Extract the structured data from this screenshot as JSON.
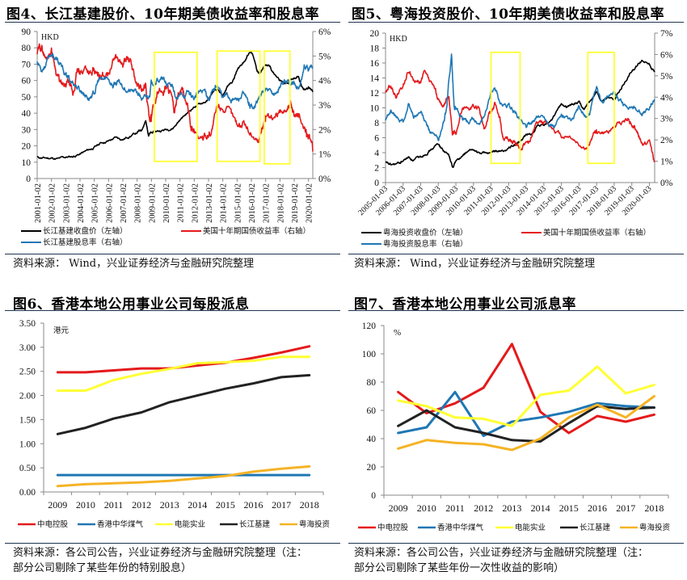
{
  "chart_data": [
    {
      "id": "fig4",
      "type": "line",
      "title": "图4、长江基建股价、10年期美债收益率和股息率",
      "left_unit": "HKD",
      "ylim_left": [
        0,
        90
      ],
      "yticks_left": [
        "0",
        "10",
        "20",
        "30",
        "40",
        "50",
        "60",
        "70",
        "80",
        "90"
      ],
      "ylim_right": [
        0,
        6
      ],
      "yticks_right": [
        "0%",
        "1%",
        "2%",
        "3%",
        "4%",
        "5%",
        "6%"
      ],
      "x_range": [
        2001.0,
        2020.3
      ],
      "xticks": [
        "2001-01-02",
        "2002-01-02",
        "2003-01-02",
        "2004-01-02",
        "2005-01-02",
        "2006-01-02",
        "2007-01-02",
        "2008-01-02",
        "2009-01-02",
        "2010-01-02",
        "2011-01-02",
        "2012-01-02",
        "2013-01-02",
        "2014-01-02",
        "2015-01-02",
        "2016-01-02",
        "2017-01-02",
        "2018-01-02",
        "2019-01-02",
        "2020-01-02"
      ],
      "series": [
        {
          "name": "长江基建收盘价（左轴）",
          "axis": "left",
          "color": "#000000",
          "x": [
            2001.0,
            2001.5,
            2002.0,
            2002.5,
            2003.0,
            2003.5,
            2004.0,
            2004.5,
            2005.0,
            2005.5,
            2006.0,
            2006.5,
            2007.0,
            2007.5,
            2008.0,
            2008.3,
            2008.6,
            2008.8,
            2009.0,
            2009.5,
            2010.0,
            2010.5,
            2011.0,
            2011.5,
            2012.0,
            2012.5,
            2013.0,
            2013.3,
            2013.6,
            2014.0,
            2014.3,
            2014.7,
            2015.0,
            2015.3,
            2015.6,
            2015.9,
            2016.1,
            2016.4,
            2016.6,
            2017.0,
            2017.3,
            2017.6,
            2018.0,
            2018.3,
            2018.6,
            2019.0,
            2019.3,
            2019.5,
            2019.8,
            2020.0,
            2020.3
          ],
          "y": [
            13,
            12.5,
            12.5,
            12,
            13,
            13.5,
            15,
            17,
            19,
            22,
            23,
            25,
            24,
            26,
            28,
            30,
            35,
            27,
            28,
            29,
            30,
            31,
            36,
            40,
            44,
            46,
            48,
            53,
            54,
            50,
            56,
            60,
            66,
            70,
            73,
            78,
            75,
            66,
            64,
            70,
            68,
            64,
            60,
            58,
            59,
            62,
            63,
            57,
            54,
            56,
            53
          ]
        },
        {
          "name": "美国十年期国债收益率（右轴）",
          "axis": "right",
          "color": "#e41a1c",
          "x": [
            2001.0,
            2001.3,
            2001.6,
            2002.0,
            2002.3,
            2002.6,
            2002.9,
            2003.2,
            2003.5,
            2003.8,
            2004.0,
            2004.4,
            2004.8,
            2005.0,
            2005.3,
            2005.6,
            2006.0,
            2006.5,
            2007.0,
            2007.3,
            2007.6,
            2008.0,
            2008.3,
            2008.6,
            2008.9,
            2009.0,
            2009.4,
            2009.8,
            2010.0,
            2010.3,
            2010.6,
            2010.9,
            2011.2,
            2011.5,
            2011.8,
            2012.0,
            2012.5,
            2012.9,
            2013.2,
            2013.6,
            2014.0,
            2014.5,
            2015.0,
            2015.5,
            2016.0,
            2016.5,
            2016.9,
            2017.0,
            2017.5,
            2018.0,
            2018.5,
            2018.8,
            2019.0,
            2019.4,
            2019.8,
            2020.0,
            2020.3
          ],
          "y": [
            5.1,
            5.4,
            4.9,
            5.3,
            4.5,
            3.9,
            3.6,
            3.9,
            3.3,
            4.4,
            4.2,
            4.6,
            4.2,
            4.3,
            4.1,
            4.3,
            4.4,
            5.0,
            4.6,
            4.9,
            4.6,
            3.8,
            3.6,
            3.9,
            2.2,
            2.4,
            3.6,
            3.5,
            3.8,
            3.6,
            2.6,
            3.4,
            3.5,
            3.0,
            2.0,
            1.9,
            1.6,
            1.8,
            2.0,
            2.8,
            3.0,
            2.6,
            2.2,
            2.3,
            1.9,
            1.5,
            2.4,
            2.5,
            2.3,
            2.7,
            2.9,
            3.1,
            2.7,
            2.4,
            1.8,
            1.9,
            1.1
          ]
        },
        {
          "name": "长江基建股息率（右轴）",
          "axis": "right",
          "color": "#1f77b4",
          "x": [
            2001.0,
            2001.3,
            2001.6,
            2002.0,
            2002.3,
            2002.6,
            2003.0,
            2003.3,
            2003.6,
            2004.0,
            2004.3,
            2004.6,
            2005.0,
            2005.3,
            2005.6,
            2006.0,
            2006.3,
            2006.6,
            2007.0,
            2007.5,
            2008.0,
            2008.4,
            2008.8,
            2009.0,
            2009.4,
            2009.8,
            2010.0,
            2010.4,
            2010.8,
            2011.2,
            2011.6,
            2012.0,
            2012.4,
            2012.8,
            2013.0,
            2013.3,
            2013.6,
            2014.0,
            2014.3,
            2014.6,
            2015.0,
            2015.4,
            2015.8,
            2016.0,
            2016.4,
            2016.7,
            2017.0,
            2017.4,
            2017.8,
            2018.0,
            2018.4,
            2018.8,
            2019.0,
            2019.4,
            2019.7,
            2020.0,
            2020.3
          ],
          "y": [
            4.8,
            4.5,
            4.7,
            5.1,
            4.9,
            4.6,
            4.2,
            4.0,
            3.9,
            3.6,
            3.5,
            3.3,
            3.5,
            4.0,
            4.0,
            4.1,
            3.8,
            3.9,
            3.8,
            3.6,
            3.5,
            3.2,
            3.3,
            3.9,
            4.1,
            4.0,
            3.9,
            3.7,
            3.2,
            3.4,
            3.5,
            3.3,
            3.5,
            3.6,
            3.3,
            3.5,
            3.9,
            3.3,
            3.4,
            3.3,
            3.2,
            3.4,
            3.0,
            2.9,
            3.2,
            3.4,
            3.6,
            3.4,
            3.5,
            3.8,
            4.0,
            3.9,
            3.9,
            3.8,
            4.6,
            4.4,
            4.5
          ]
        }
      ],
      "highlight_boxes": [
        {
          "x0": 2009.2,
          "x1": 2012.2,
          "y0": 0.7,
          "y1": 5.15
        },
        {
          "x0": 2013.6,
          "x1": 2016.6,
          "y0": 0.7,
          "y1": 5.2
        },
        {
          "x0": 2016.9,
          "x1": 2018.7,
          "y0": 0.6,
          "y1": 5.2
        }
      ]
    },
    {
      "id": "fig5",
      "type": "line",
      "title": "图5、粤海投资股价、10年期美债收益率和股息率",
      "left_unit": "HKD",
      "ylim_left": [
        0,
        20
      ],
      "yticks_left": [
        "0",
        "2",
        "4",
        "6",
        "8",
        "10",
        "12",
        "14",
        "16",
        "18",
        "20"
      ],
      "ylim_right": [
        0,
        7
      ],
      "yticks_right": [
        "0%",
        "1%",
        "2%",
        "3%",
        "4%",
        "5%",
        "6%",
        "7%"
      ],
      "x_range": [
        2005.0,
        2020.3
      ],
      "xticks": [
        "2005-01-03",
        "2006-01-03",
        "2007-01-03",
        "2008-01-03",
        "2009-01-03",
        "2010-01-03",
        "2011-01-03",
        "2012-01-03",
        "2013-01-03",
        "2014-01-03",
        "2015-01-03",
        "2016-01-03",
        "2017-01-03",
        "2018-01-03",
        "2019-01-03",
        "2020-01-03"
      ],
      "series": [
        {
          "name": "粤海投资收盘价（左轴）",
          "axis": "left",
          "color": "#000000",
          "x": [
            2005.0,
            2005.3,
            2005.7,
            2006.0,
            2006.3,
            2006.6,
            2007.0,
            2007.3,
            2007.7,
            2008.0,
            2008.3,
            2008.6,
            2008.8,
            2009.0,
            2009.3,
            2009.6,
            2010.0,
            2010.3,
            2010.6,
            2011.0,
            2011.3,
            2011.6,
            2012.0,
            2012.3,
            2012.6,
            2013.0,
            2013.3,
            2013.6,
            2014.0,
            2014.3,
            2014.6,
            2015.0,
            2015.3,
            2015.6,
            2016.0,
            2016.3,
            2016.6,
            2016.9,
            2017.0,
            2017.3,
            2017.6,
            2018.0,
            2018.3,
            2018.6,
            2019.0,
            2019.3,
            2019.6,
            2020.0,
            2020.3
          ],
          "y": [
            2.6,
            2.3,
            2.5,
            2.9,
            3.4,
            3.0,
            3.4,
            4.0,
            4.6,
            5.2,
            4.3,
            3.6,
            2.0,
            3.0,
            3.3,
            4.0,
            4.4,
            3.8,
            4.0,
            4.0,
            4.1,
            4.1,
            4.6,
            5.0,
            5.4,
            6.2,
            6.5,
            7.3,
            7.6,
            8.0,
            9.0,
            10.5,
            10.0,
            10.5,
            10.7,
            9.8,
            10.5,
            11.5,
            12.0,
            11.0,
            11.5,
            11.0,
            12.5,
            13.5,
            15.0,
            15.5,
            16.5,
            16.0,
            14.8
          ]
        },
        {
          "name": "美国十年期国债收益率（右轴）",
          "axis": "right",
          "color": "#e41a1c",
          "x": [
            2005.0,
            2005.3,
            2005.6,
            2006.0,
            2006.3,
            2006.6,
            2007.0,
            2007.2,
            2007.5,
            2007.8,
            2008.0,
            2008.3,
            2008.6,
            2008.8,
            2009.0,
            2009.4,
            2009.8,
            2010.0,
            2010.3,
            2010.6,
            2010.9,
            2011.0,
            2011.2,
            2011.5,
            2011.7,
            2012.0,
            2012.3,
            2012.6,
            2012.9,
            2013.2,
            2013.5,
            2013.8,
            2014.0,
            2014.5,
            2015.0,
            2015.5,
            2016.0,
            2016.5,
            2016.9,
            2017.0,
            2017.5,
            2018.0,
            2018.5,
            2018.8,
            2019.0,
            2019.3,
            2019.6,
            2020.0,
            2020.3
          ],
          "y": [
            4.2,
            4.5,
            4.0,
            4.5,
            5.2,
            4.7,
            4.7,
            5.1,
            4.7,
            4.3,
            3.9,
            3.6,
            4.0,
            2.3,
            2.4,
            3.6,
            3.4,
            3.7,
            3.5,
            2.6,
            3.3,
            3.4,
            3.7,
            3.0,
            2.0,
            2.0,
            1.9,
            1.6,
            1.8,
            2.0,
            2.7,
            2.7,
            2.8,
            2.6,
            2.2,
            2.2,
            1.8,
            1.6,
            2.4,
            2.4,
            2.3,
            2.6,
            2.9,
            3.1,
            2.7,
            2.4,
            1.8,
            1.9,
            1.0
          ]
        },
        {
          "name": "粤海投资股息率（右轴）",
          "axis": "right",
          "color": "#1f77b4",
          "x": [
            2005.0,
            2005.3,
            2005.6,
            2006.0,
            2006.3,
            2006.6,
            2007.0,
            2007.3,
            2007.6,
            2008.0,
            2008.3,
            2008.5,
            2008.6,
            2008.75,
            2008.9,
            2009.0,
            2009.3,
            2009.6,
            2010.0,
            2010.3,
            2010.6,
            2011.0,
            2011.3,
            2011.6,
            2012.0,
            2012.3,
            2012.6,
            2013.0,
            2013.3,
            2013.6,
            2014.0,
            2014.3,
            2014.6,
            2015.0,
            2015.3,
            2015.6,
            2016.0,
            2016.3,
            2016.6,
            2017.0,
            2017.3,
            2017.6,
            2018.0,
            2018.3,
            2018.6,
            2019.0,
            2019.3,
            2019.6,
            2020.0,
            2020.3
          ],
          "y": [
            2.9,
            3.4,
            3.0,
            2.9,
            3.6,
            3.1,
            3.3,
            2.7,
            2.3,
            2.0,
            2.8,
            3.6,
            4.8,
            6.0,
            3.5,
            3.6,
            3.1,
            2.8,
            3.0,
            2.7,
            3.0,
            4.3,
            4.2,
            3.6,
            3.6,
            3.3,
            3.0,
            2.7,
            2.8,
            3.1,
            3.1,
            2.8,
            2.6,
            3.1,
            2.9,
            2.8,
            3.5,
            3.0,
            3.2,
            4.5,
            3.8,
            4.0,
            4.3,
            3.9,
            3.6,
            3.6,
            3.4,
            3.3,
            3.4,
            3.9
          ]
        }
      ],
      "highlight_boxes": [
        {
          "x0": 2011.0,
          "x1": 2012.65,
          "y0": 0.9,
          "y1": 6.1
        },
        {
          "x0": 2016.5,
          "x1": 2018.0,
          "y0": 0.9,
          "y1": 6.1
        }
      ]
    },
    {
      "id": "fig6",
      "type": "line",
      "title": "图6、香港本地公用事业公司每股派息",
      "left_unit": "港元",
      "ylim": [
        0,
        3.5
      ],
      "yticks": [
        "0.00",
        "0.50",
        "1.00",
        "1.50",
        "2.00",
        "2.50",
        "3.00",
        "3.50"
      ],
      "categories": [
        "2009",
        "2010",
        "2011",
        "2012",
        "2013",
        "2014",
        "2015",
        "2016",
        "2017",
        "2018"
      ],
      "series": [
        {
          "name": "中电控股",
          "color": "#e41a1c",
          "values": [
            2.48,
            2.48,
            2.52,
            2.56,
            2.56,
            2.62,
            2.68,
            2.78,
            2.89,
            3.02
          ]
        },
        {
          "name": "香港中华煤气",
          "color": "#1f77b4",
          "values": [
            0.35,
            0.35,
            0.35,
            0.35,
            0.35,
            0.35,
            0.35,
            0.35,
            0.35,
            0.35
          ]
        },
        {
          "name": "电能实业",
          "color": "#ffff33",
          "values": [
            2.1,
            2.1,
            2.32,
            2.45,
            2.55,
            2.67,
            2.69,
            2.72,
            2.8,
            2.8
          ]
        },
        {
          "name": "长江基建",
          "color": "#222222",
          "values": [
            1.2,
            1.33,
            1.52,
            1.65,
            1.86,
            2.0,
            2.14,
            2.25,
            2.38,
            2.42
          ]
        },
        {
          "name": "粤海投资",
          "color": "#f5b325",
          "values": [
            0.12,
            0.16,
            0.18,
            0.2,
            0.23,
            0.28,
            0.33,
            0.42,
            0.48,
            0.53
          ]
        }
      ]
    },
    {
      "id": "fig7",
      "type": "line",
      "title": "图7、香港本地公用事业公司派息率",
      "left_unit": "%",
      "ylim": [
        0,
        120
      ],
      "yticks": [
        "0",
        "20",
        "40",
        "60",
        "80",
        "100",
        "120"
      ],
      "categories": [
        "2009",
        "2010",
        "2011",
        "2012",
        "2013",
        "2014",
        "2015",
        "2016",
        "2017",
        "2018"
      ],
      "series": [
        {
          "name": "中电控股",
          "color": "#e41a1c",
          "values": [
            73,
            58,
            65,
            76,
            107,
            59,
            44,
            56,
            52,
            57
          ]
        },
        {
          "name": "香港中华煤气",
          "color": "#1f77b4",
          "values": [
            44,
            48,
            73,
            42,
            52,
            55,
            59,
            65,
            63,
            62
          ]
        },
        {
          "name": "电能实业",
          "color": "#ffff33",
          "values": [
            67,
            63,
            55,
            54,
            49,
            71,
            74,
            91,
            72,
            78
          ]
        },
        {
          "name": "长江基建",
          "color": "#222222",
          "values": [
            49,
            60,
            48,
            44,
            39,
            38,
            51,
            63,
            61,
            62
          ]
        },
        {
          "name": "粤海投资",
          "color": "#f5b325",
          "values": [
            33,
            39,
            37,
            36,
            32,
            40,
            55,
            64,
            55,
            70
          ]
        }
      ]
    }
  ],
  "sources": {
    "fig4": "资料来源： Wind，兴业证券经济与金融研究院整理",
    "fig5": "资料来源： Wind，兴业证券经济与金融研究院整理",
    "fig6_line1": "资料来源：各公司公告，兴业证券经济与金融研究院整理（注：",
    "fig6_line2": "部分公司剔除了某些年份的特别股息）",
    "fig7_line1": "资料来源：各公司公告，兴业证券经济与金融研究院整理（注：",
    "fig7_line2": "部分公司剔除了某些年份一次性收益的影响）"
  }
}
